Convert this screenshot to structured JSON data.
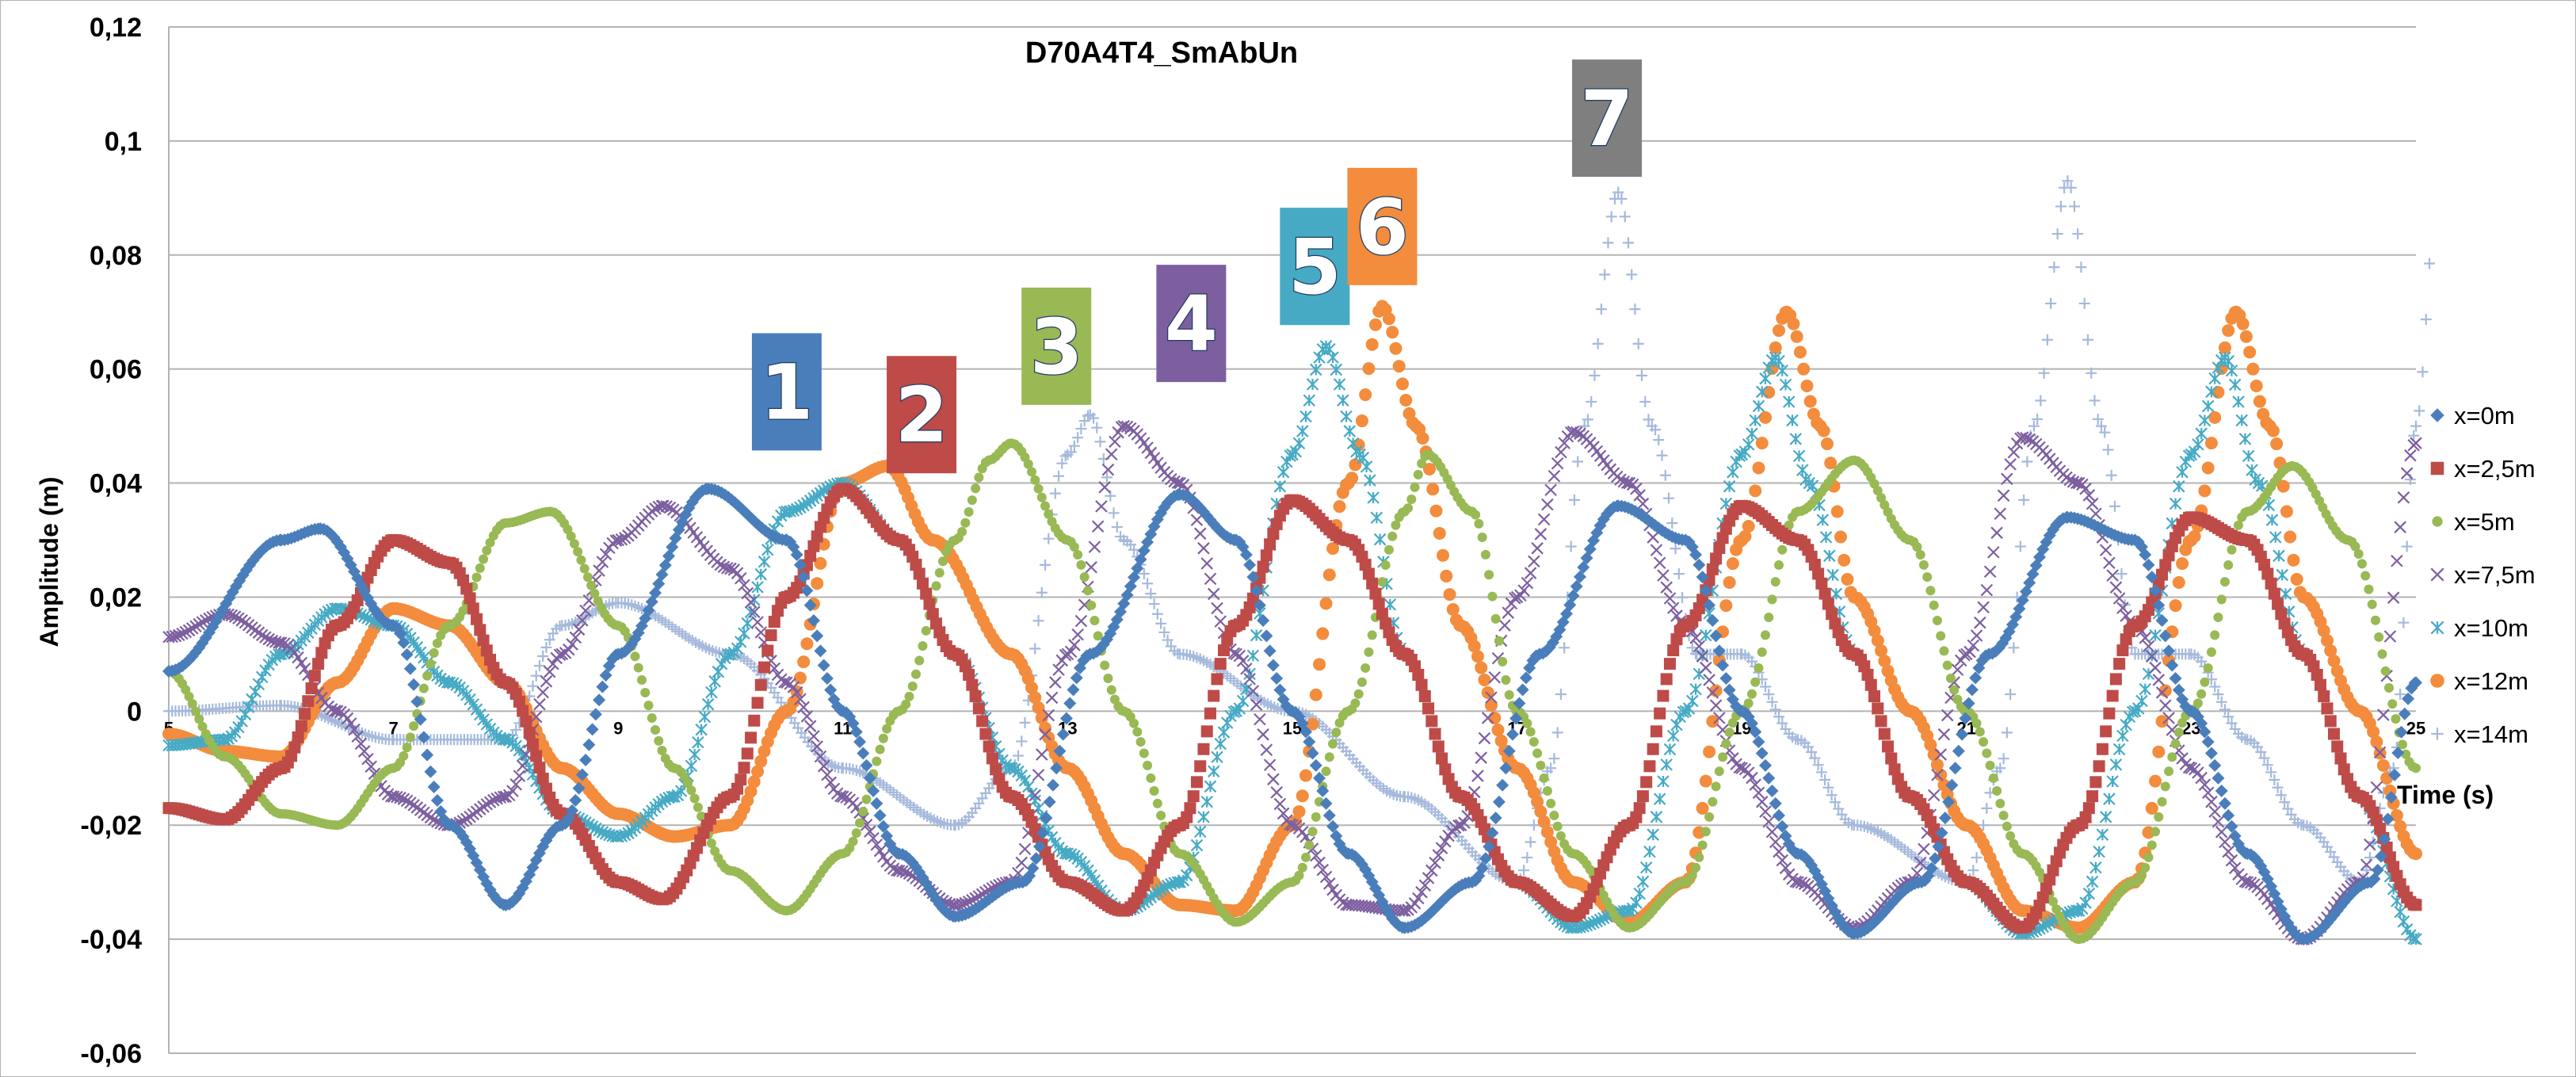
{
  "chart_data": {
    "type": "scatter",
    "title": "D70A4T4_SmAbUn",
    "xlabel": "Time (s)",
    "ylabel": "Amplitude (m)",
    "xlim": [
      5,
      25
    ],
    "ylim": [
      -0.06,
      0.12
    ],
    "x_ticks": [
      "5",
      "7",
      "9",
      "11",
      "13",
      "15",
      "17",
      "19",
      "21",
      "23",
      "25"
    ],
    "y_ticks": [
      "-0,06",
      "-0,04",
      "-0,02",
      "0",
      "0,02",
      "0,04",
      "0,06",
      "0,08",
      "0,1",
      "0,12"
    ],
    "grid": true,
    "legend_position": "right",
    "colors": {
      "x0": "#4a7ebb",
      "x25": "#be4b48",
      "x5": "#98b954",
      "x75": "#7d5fa0",
      "x10": "#46aac5",
      "x12": "#f38c3c",
      "x14": "#a5b9dc",
      "grid": "#b3b3b3"
    },
    "badges": [
      {
        "label": "1",
        "time": 10.5,
        "color": "#4a7ebb"
      },
      {
        "label": "2",
        "time": 11.7,
        "color": "#be4b48"
      },
      {
        "label": "3",
        "time": 12.9,
        "color": "#98b954"
      },
      {
        "label": "4",
        "time": 14.1,
        "color": "#7d5fa0"
      },
      {
        "label": "5",
        "time": 15.2,
        "color": "#46aac5"
      },
      {
        "label": "6",
        "time": 15.8,
        "color": "#f38c3c"
      },
      {
        "label": "7",
        "time": 17.8,
        "color": "#7f7f7f"
      }
    ],
    "series": [
      {
        "name": "x=0m",
        "marker": "diamond",
        "color": "#4a7ebb",
        "points": [
          [
            5,
            0.007
          ],
          [
            6,
            0.03
          ],
          [
            6.35,
            0.032
          ],
          [
            7,
            0.015
          ],
          [
            7.5,
            -0.02
          ],
          [
            8,
            -0.034
          ],
          [
            8.5,
            -0.02
          ],
          [
            9,
            0.01
          ],
          [
            9.8,
            0.039
          ],
          [
            10.5,
            0.03
          ],
          [
            11,
            0
          ],
          [
            11.5,
            -0.025
          ],
          [
            12,
            -0.036
          ],
          [
            12.6,
            -0.03
          ],
          [
            13.2,
            0.01
          ],
          [
            14,
            0.038
          ],
          [
            14.5,
            0.03
          ],
          [
            15,
            0
          ],
          [
            15.5,
            -0.025
          ],
          [
            16,
            -0.038
          ],
          [
            16.6,
            -0.03
          ],
          [
            17.2,
            0.01
          ],
          [
            17.9,
            0.036
          ],
          [
            18.5,
            0.03
          ],
          [
            19,
            0
          ],
          [
            19.5,
            -0.025
          ],
          [
            20,
            -0.039
          ],
          [
            20.6,
            -0.03
          ],
          [
            21.2,
            0.01
          ],
          [
            21.9,
            0.034
          ],
          [
            22.5,
            0.03
          ],
          [
            23,
            0
          ],
          [
            23.5,
            -0.025
          ],
          [
            24,
            -0.04
          ],
          [
            24.6,
            -0.03
          ],
          [
            25,
            0.005
          ]
        ]
      },
      {
        "name": "x=2,5m",
        "marker": "square",
        "color": "#be4b48",
        "points": [
          [
            5,
            -0.017
          ],
          [
            5.5,
            -0.019
          ],
          [
            6,
            -0.01
          ],
          [
            6.5,
            0.015
          ],
          [
            7,
            0.03
          ],
          [
            7.5,
            0.026
          ],
          [
            8,
            0.005
          ],
          [
            8.5,
            -0.018
          ],
          [
            9,
            -0.03
          ],
          [
            9.4,
            -0.033
          ],
          [
            10,
            -0.015
          ],
          [
            10.5,
            0.02
          ],
          [
            11,
            0.039
          ],
          [
            11.5,
            0.03
          ],
          [
            12,
            0.01
          ],
          [
            12.5,
            -0.015
          ],
          [
            13,
            -0.03
          ],
          [
            13.5,
            -0.035
          ],
          [
            14,
            -0.02
          ],
          [
            14.5,
            0.015
          ],
          [
            15,
            0.037
          ],
          [
            15.5,
            0.03
          ],
          [
            16,
            0.01
          ],
          [
            16.5,
            -0.015
          ],
          [
            17,
            -0.03
          ],
          [
            17.5,
            -0.036
          ],
          [
            18,
            -0.02
          ],
          [
            18.5,
            0.015
          ],
          [
            19,
            0.036
          ],
          [
            19.5,
            0.03
          ],
          [
            20,
            0.01
          ],
          [
            20.5,
            -0.015
          ],
          [
            21,
            -0.03
          ],
          [
            21.5,
            -0.038
          ],
          [
            22,
            -0.02
          ],
          [
            22.5,
            0.015
          ],
          [
            23,
            0.034
          ],
          [
            23.5,
            0.03
          ],
          [
            24,
            0.01
          ],
          [
            24.5,
            -0.015
          ],
          [
            25,
            -0.034
          ]
        ]
      },
      {
        "name": "x=5m",
        "marker": "circle-small",
        "color": "#98b954",
        "points": [
          [
            5,
            0.007
          ],
          [
            5.5,
            -0.008
          ],
          [
            6,
            -0.018
          ],
          [
            6.5,
            -0.02
          ],
          [
            7,
            -0.01
          ],
          [
            7.5,
            0.015
          ],
          [
            8,
            0.033
          ],
          [
            8.4,
            0.035
          ],
          [
            9,
            0.015
          ],
          [
            9.5,
            -0.01
          ],
          [
            10,
            -0.028
          ],
          [
            10.5,
            -0.035
          ],
          [
            11,
            -0.025
          ],
          [
            11.5,
            0
          ],
          [
            12,
            0.03
          ],
          [
            12.3,
            0.044
          ],
          [
            12.5,
            0.047
          ],
          [
            13,
            0.03
          ],
          [
            13.5,
            0
          ],
          [
            14,
            -0.025
          ],
          [
            14.5,
            -0.037
          ],
          [
            15,
            -0.03
          ],
          [
            15.5,
            0
          ],
          [
            16,
            0.035
          ],
          [
            16.2,
            0.045
          ],
          [
            16.6,
            0.035
          ],
          [
            17,
            0
          ],
          [
            17.5,
            -0.025
          ],
          [
            18,
            -0.038
          ],
          [
            18.5,
            -0.03
          ],
          [
            19,
            0
          ],
          [
            19.5,
            0.035
          ],
          [
            20,
            0.044
          ],
          [
            20.5,
            0.03
          ],
          [
            21,
            0
          ],
          [
            21.5,
            -0.025
          ],
          [
            22,
            -0.04
          ],
          [
            22.5,
            -0.03
          ],
          [
            23,
            0
          ],
          [
            23.5,
            0.035
          ],
          [
            23.9,
            0.043
          ],
          [
            24.4,
            0.03
          ],
          [
            25,
            -0.01
          ]
        ]
      },
      {
        "name": "x=7,5m",
        "marker": "x",
        "color": "#7d5fa0",
        "points": [
          [
            5,
            0.013
          ],
          [
            5.5,
            0.017
          ],
          [
            6,
            0.012
          ],
          [
            6.5,
            0
          ],
          [
            7,
            -0.015
          ],
          [
            7.5,
            -0.02
          ],
          [
            8,
            -0.015
          ],
          [
            8.5,
            0.01
          ],
          [
            9,
            0.03
          ],
          [
            9.4,
            0.036
          ],
          [
            10,
            0.025
          ],
          [
            10.5,
            0.005
          ],
          [
            11,
            -0.015
          ],
          [
            11.5,
            -0.028
          ],
          [
            12,
            -0.034
          ],
          [
            12.5,
            -0.03
          ],
          [
            13,
            0.01
          ],
          [
            13.5,
            0.05
          ],
          [
            14,
            0.04
          ],
          [
            14.5,
            0.01
          ],
          [
            15,
            -0.02
          ],
          [
            15.5,
            -0.034
          ],
          [
            16,
            -0.035
          ],
          [
            16.5,
            -0.02
          ],
          [
            17,
            0.02
          ],
          [
            17.5,
            0.049
          ],
          [
            18,
            0.04
          ],
          [
            18.5,
            0.015
          ],
          [
            19,
            -0.01
          ],
          [
            19.5,
            -0.03
          ],
          [
            20,
            -0.038
          ],
          [
            20.5,
            -0.03
          ],
          [
            21,
            0.01
          ],
          [
            21.5,
            0.048
          ],
          [
            22,
            0.04
          ],
          [
            22.5,
            0.015
          ],
          [
            23,
            -0.01
          ],
          [
            23.5,
            -0.03
          ],
          [
            24,
            -0.04
          ],
          [
            24.5,
            -0.03
          ],
          [
            25,
            0.047
          ]
        ]
      },
      {
        "name": "x=10m",
        "marker": "star",
        "color": "#46aac5",
        "points": [
          [
            5,
            -0.006
          ],
          [
            5.5,
            -0.005
          ],
          [
            6,
            0.01
          ],
          [
            6.5,
            0.018
          ],
          [
            7,
            0.015
          ],
          [
            7.5,
            0.005
          ],
          [
            8,
            -0.005
          ],
          [
            8.5,
            -0.018
          ],
          [
            9,
            -0.022
          ],
          [
            9.5,
            -0.015
          ],
          [
            10,
            0.01
          ],
          [
            10.5,
            0.035
          ],
          [
            11,
            0.04
          ],
          [
            11.5,
            0.03
          ],
          [
            12,
            0.01
          ],
          [
            12.5,
            -0.01
          ],
          [
            13,
            -0.025
          ],
          [
            13.5,
            -0.035
          ],
          [
            14,
            -0.03
          ],
          [
            14.5,
            0
          ],
          [
            15,
            0.045
          ],
          [
            15.3,
            0.064
          ],
          [
            15.6,
            0.045
          ],
          [
            16,
            0.01
          ],
          [
            16.5,
            -0.015
          ],
          [
            17,
            -0.03
          ],
          [
            17.5,
            -0.038
          ],
          [
            18,
            -0.035
          ],
          [
            18.5,
            0
          ],
          [
            19,
            0.045
          ],
          [
            19.3,
            0.062
          ],
          [
            19.6,
            0.04
          ],
          [
            20,
            0.01
          ],
          [
            20.5,
            -0.015
          ],
          [
            21,
            -0.03
          ],
          [
            21.5,
            -0.039
          ],
          [
            22,
            -0.035
          ],
          [
            22.5,
            0
          ],
          [
            23,
            0.045
          ],
          [
            23.3,
            0.062
          ],
          [
            23.6,
            0.04
          ],
          [
            24,
            0.01
          ],
          [
            24.5,
            -0.015
          ],
          [
            25,
            -0.04
          ]
        ]
      },
      {
        "name": "x=12m",
        "marker": "circle",
        "color": "#f38c3c",
        "points": [
          [
            5,
            -0.004
          ],
          [
            5.5,
            -0.007
          ],
          [
            6,
            -0.008
          ],
          [
            6.5,
            0.005
          ],
          [
            7,
            0.018
          ],
          [
            7.5,
            0.015
          ],
          [
            8,
            0.005
          ],
          [
            8.5,
            -0.01
          ],
          [
            9,
            -0.018
          ],
          [
            9.5,
            -0.022
          ],
          [
            10,
            -0.02
          ],
          [
            10.5,
            0
          ],
          [
            11,
            0.04
          ],
          [
            11.4,
            0.043
          ],
          [
            11.8,
            0.03
          ],
          [
            12.5,
            0.01
          ],
          [
            13,
            -0.01
          ],
          [
            13.5,
            -0.025
          ],
          [
            14,
            -0.034
          ],
          [
            14.5,
            -0.035
          ],
          [
            15,
            -0.02
          ],
          [
            15.5,
            0.04
          ],
          [
            15.8,
            0.071
          ],
          [
            16.1,
            0.05
          ],
          [
            16.5,
            0.015
          ],
          [
            17,
            -0.01
          ],
          [
            17.5,
            -0.03
          ],
          [
            18,
            -0.037
          ],
          [
            18.5,
            -0.03
          ],
          [
            19,
            0.03
          ],
          [
            19.4,
            0.07
          ],
          [
            19.7,
            0.05
          ],
          [
            20,
            0.02
          ],
          [
            20.5,
            0
          ],
          [
            21,
            -0.02
          ],
          [
            21.5,
            -0.035
          ],
          [
            22,
            -0.038
          ],
          [
            22.5,
            -0.03
          ],
          [
            23,
            0.03
          ],
          [
            23.4,
            0.07
          ],
          [
            23.7,
            0.05
          ],
          [
            24,
            0.02
          ],
          [
            24.5,
            0
          ],
          [
            25,
            -0.025
          ]
        ]
      },
      {
        "name": "x=14m",
        "marker": "plus",
        "color": "#a5b9dc",
        "points": [
          [
            5,
            0
          ],
          [
            6,
            0.001
          ],
          [
            7,
            -0.005
          ],
          [
            8,
            -0.005
          ],
          [
            8.5,
            0.015
          ],
          [
            9,
            0.019
          ],
          [
            10,
            0.01
          ],
          [
            11,
            -0.01
          ],
          [
            12,
            -0.02
          ],
          [
            12.5,
            -0.01
          ],
          [
            13,
            0.045
          ],
          [
            13.2,
            0.052
          ],
          [
            13.5,
            0.03
          ],
          [
            14,
            0.01
          ],
          [
            15,
            0
          ],
          [
            16,
            -0.015
          ],
          [
            17,
            -0.03
          ],
          [
            17.3,
            -0.01
          ],
          [
            17.6,
            0.05
          ],
          [
            17.9,
            0.091
          ],
          [
            18.2,
            0.05
          ],
          [
            18.6,
            0.01
          ],
          [
            19,
            0.01
          ],
          [
            19.5,
            -0.005
          ],
          [
            20,
            -0.02
          ],
          [
            21,
            -0.03
          ],
          [
            21.3,
            -0.01
          ],
          [
            21.6,
            0.05
          ],
          [
            21.9,
            0.093
          ],
          [
            22.2,
            0.05
          ],
          [
            22.5,
            0.01
          ],
          [
            23,
            0.01
          ],
          [
            23.5,
            -0.005
          ],
          [
            24,
            -0.02
          ],
          [
            24.5,
            -0.03
          ],
          [
            24.8,
            -0.01
          ],
          [
            25,
            0.05
          ],
          [
            25.2,
            0.094
          ]
        ]
      }
    ]
  }
}
